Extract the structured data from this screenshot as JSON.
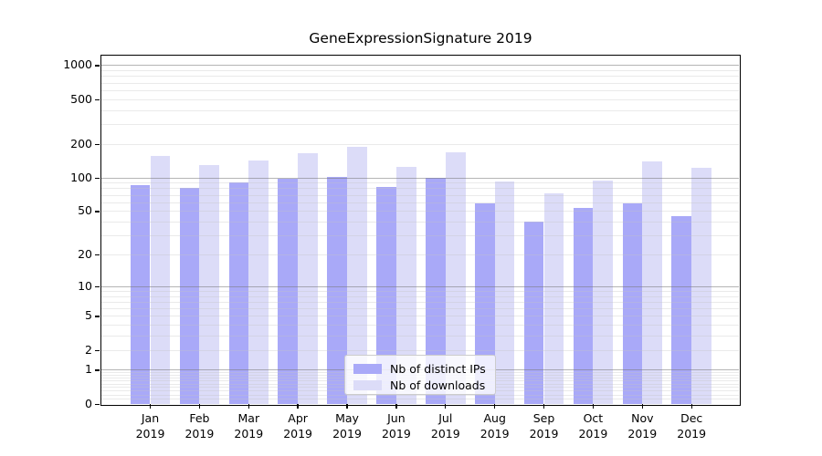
{
  "chart_data": {
    "type": "bar",
    "title": "GeneExpressionSignature 2019",
    "categories": [
      "Jan",
      "Feb",
      "Mar",
      "Apr",
      "May",
      "Jun",
      "Jul",
      "Aug",
      "Sep",
      "Oct",
      "Nov",
      "Dec"
    ],
    "category_year": "2019",
    "series": [
      {
        "name": "Nb of distinct IPs",
        "color": "#a9a9f8",
        "values": [
          86,
          80,
          90,
          98,
          101,
          83,
          100,
          59,
          40,
          53,
          58,
          45
        ]
      },
      {
        "name": "Nb of downloads",
        "color": "#dcdcf8",
        "values": [
          156,
          129,
          141,
          166,
          187,
          124,
          168,
          92,
          72,
          93,
          139,
          122
        ]
      }
    ],
    "xlabel": "",
    "ylabel": "",
    "yscale": "log1p",
    "y_tick_values": [
      0,
      1,
      2,
      5,
      10,
      20,
      50,
      100,
      200,
      500,
      1000
    ],
    "ylim": [
      0,
      1200
    ],
    "grid": "on",
    "legend_position": "lower-center",
    "colors": {
      "axis": "#000000",
      "major_grid": "#b3b3b3",
      "minor_grid": "#e9e9e9",
      "legend_border": "#cccccc",
      "background": "#ffffff"
    }
  }
}
